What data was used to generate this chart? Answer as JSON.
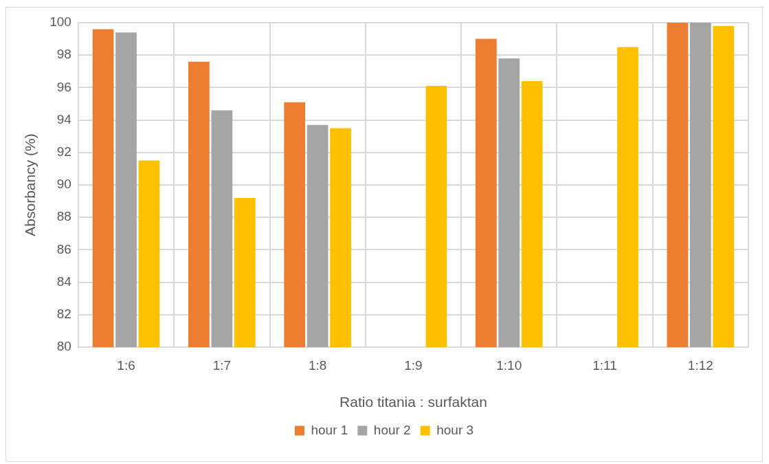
{
  "chart_data": {
    "type": "bar",
    "xlabel": "Ratio titania : surfaktan",
    "ylabel": "Absorbancy (%)",
    "categories": [
      "1:6",
      "1:7",
      "1:8",
      "1:9",
      "1:10",
      "1:11",
      "1:12"
    ],
    "series": [
      {
        "name": "hour 1",
        "color": "#ed7d31",
        "values": [
          99.6,
          97.6,
          95.1,
          null,
          99.0,
          null,
          100
        ]
      },
      {
        "name": "hour 2",
        "color": "#a5a5a5",
        "values": [
          99.4,
          94.6,
          93.7,
          null,
          97.8,
          null,
          100
        ]
      },
      {
        "name": "hour 3",
        "color": "#ffc000",
        "values": [
          91.5,
          89.2,
          93.5,
          96.1,
          96.4,
          98.5,
          99.8
        ]
      }
    ],
    "ylim": [
      80,
      100
    ],
    "yticks": [
      80,
      82,
      84,
      86,
      88,
      90,
      92,
      94,
      96,
      98,
      100
    ],
    "grid": true,
    "legend": "bottom"
  }
}
